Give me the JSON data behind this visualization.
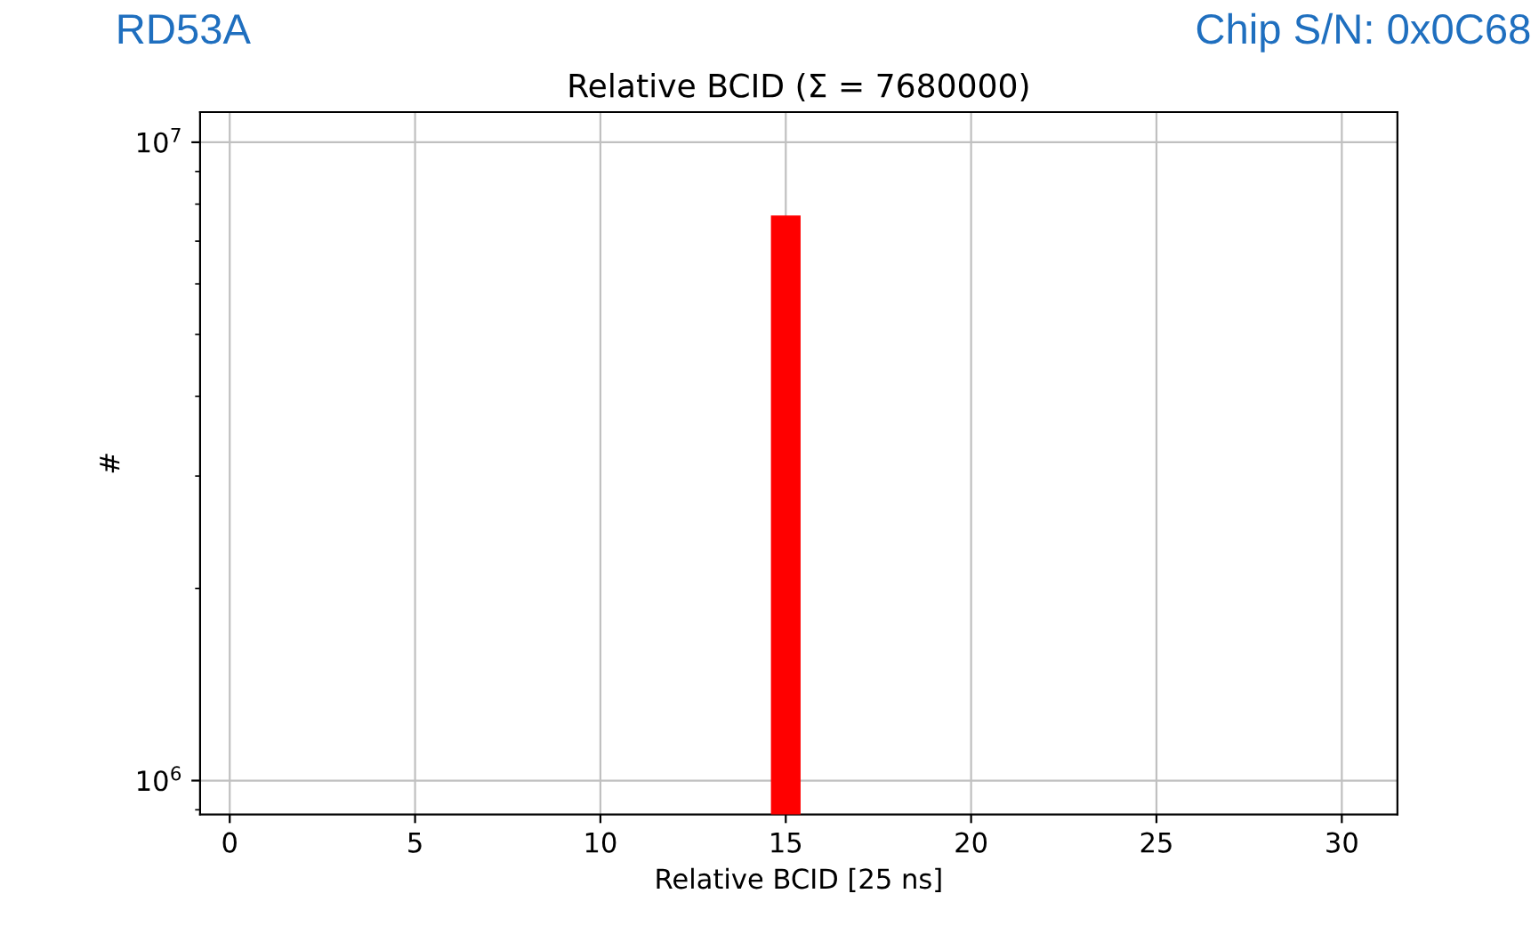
{
  "chart_data": {
    "type": "bar",
    "title": "Relative BCID (Σ = 7680000)",
    "xlabel": "Relative BCID [25 ns]",
    "ylabel": "#",
    "x": [
      15
    ],
    "series": [
      {
        "color": "#ff0000",
        "values": [
          7680000
        ]
      }
    ],
    "log": "y",
    "xlim": [
      -0.8,
      31.5
    ],
    "xticks": [
      0,
      5,
      10,
      15,
      20,
      25,
      30
    ],
    "ylim": [
      885000,
      11150000
    ],
    "yticks": [
      {
        "value": 1000000,
        "label": "10$^{6}$"
      },
      {
        "value": 10000000,
        "label": "10$^{7}$"
      }
    ],
    "grid": true,
    "annotations": [
      "RD53A",
      "Chip S/N: 0x0C68"
    ]
  }
}
